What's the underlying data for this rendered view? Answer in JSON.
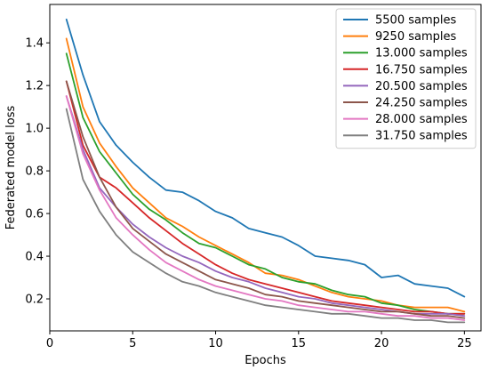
{
  "chart_data": {
    "type": "line",
    "xlabel": "Epochs",
    "ylabel": "Federated model loss",
    "xlim": [
      0,
      26
    ],
    "ylim": [
      0.05,
      1.58
    ],
    "xticks": [
      0,
      5,
      10,
      15,
      20,
      25
    ],
    "yticks": [
      0.2,
      0.4,
      0.6,
      0.8,
      1.0,
      1.2,
      1.4
    ],
    "ytick_labels": [
      "0.2",
      "0.4",
      "0.6",
      "0.8",
      "1.0",
      "1.2",
      "1.4"
    ],
    "grid": false,
    "legend_position": "top-right",
    "x": [
      1,
      2,
      3,
      4,
      5,
      6,
      7,
      8,
      9,
      10,
      11,
      12,
      13,
      14,
      15,
      16,
      17,
      18,
      19,
      20,
      21,
      22,
      23,
      24,
      25
    ],
    "series": [
      {
        "name": "5500  samples",
        "color": "#1f77b4",
        "values": [
          1.51,
          1.25,
          1.03,
          0.92,
          0.84,
          0.77,
          0.71,
          0.7,
          0.66,
          0.61,
          0.58,
          0.53,
          0.51,
          0.49,
          0.45,
          0.4,
          0.39,
          0.38,
          0.36,
          0.3,
          0.31,
          0.27,
          0.26,
          0.25,
          0.21
        ]
      },
      {
        "name": "9250  samples",
        "color": "#ff7f0e",
        "values": [
          1.42,
          1.1,
          0.93,
          0.82,
          0.72,
          0.65,
          0.58,
          0.54,
          0.49,
          0.45,
          0.41,
          0.37,
          0.32,
          0.31,
          0.29,
          0.26,
          0.23,
          0.21,
          0.2,
          0.19,
          0.17,
          0.16,
          0.16,
          0.16,
          0.14
        ]
      },
      {
        "name": "13.000 samples",
        "color": "#2ca02c",
        "values": [
          1.35,
          1.05,
          0.89,
          0.79,
          0.69,
          0.62,
          0.57,
          0.51,
          0.46,
          0.44,
          0.4,
          0.36,
          0.34,
          0.3,
          0.28,
          0.27,
          0.24,
          0.22,
          0.21,
          0.18,
          0.17,
          0.15,
          0.14,
          0.13,
          0.13
        ]
      },
      {
        "name": "16.750 samples",
        "color": "#d62728",
        "values": [
          1.22,
          0.92,
          0.77,
          0.72,
          0.65,
          0.58,
          0.52,
          0.46,
          0.41,
          0.36,
          0.32,
          0.29,
          0.27,
          0.25,
          0.23,
          0.21,
          0.19,
          0.18,
          0.17,
          0.16,
          0.15,
          0.14,
          0.14,
          0.13,
          0.13
        ]
      },
      {
        "name": "20.500 samples",
        "color": "#9467bd",
        "values": [
          1.15,
          0.9,
          0.72,
          0.63,
          0.55,
          0.49,
          0.44,
          0.4,
          0.37,
          0.33,
          0.3,
          0.28,
          0.25,
          0.23,
          0.21,
          0.2,
          0.18,
          0.17,
          0.16,
          0.15,
          0.14,
          0.13,
          0.13,
          0.13,
          0.12
        ]
      },
      {
        "name": "24.250 samples",
        "color": "#8c564b",
        "values": [
          1.22,
          0.96,
          0.77,
          0.63,
          0.53,
          0.47,
          0.41,
          0.37,
          0.33,
          0.29,
          0.27,
          0.25,
          0.22,
          0.21,
          0.19,
          0.18,
          0.17,
          0.16,
          0.15,
          0.14,
          0.14,
          0.13,
          0.12,
          0.12,
          0.11
        ]
      },
      {
        "name": "28.000 samples",
        "color": "#e377c2",
        "values": [
          1.15,
          0.88,
          0.71,
          0.58,
          0.5,
          0.43,
          0.37,
          0.33,
          0.29,
          0.26,
          0.24,
          0.22,
          0.2,
          0.19,
          0.17,
          0.16,
          0.15,
          0.14,
          0.14,
          0.13,
          0.12,
          0.12,
          0.11,
          0.11,
          0.1
        ]
      },
      {
        "name": "31.750 samples",
        "color": "#7f7f7f",
        "values": [
          1.09,
          0.76,
          0.61,
          0.5,
          0.42,
          0.37,
          0.32,
          0.28,
          0.26,
          0.23,
          0.21,
          0.19,
          0.17,
          0.16,
          0.15,
          0.14,
          0.13,
          0.13,
          0.12,
          0.11,
          0.11,
          0.1,
          0.1,
          0.09,
          0.09
        ]
      }
    ]
  }
}
